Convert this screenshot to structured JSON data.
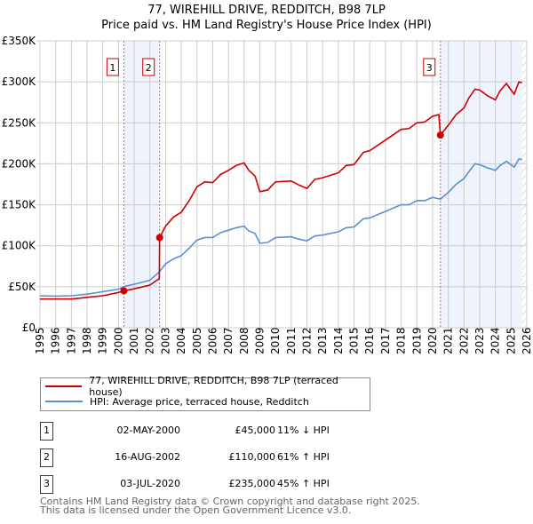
{
  "title": "77, WIREHILL DRIVE, REDDITCH, B98 7LP",
  "subtitle": "Price paid vs. HM Land Registry's House Price Index (HPI)",
  "chart_data": {
    "type": "line",
    "title": "77, WIREHILL DRIVE, REDDITCH, B98 7LP",
    "subtitle": "Price paid vs. HM Land Registry's House Price Index (HPI)",
    "xlim": [
      1995,
      2026
    ],
    "ylim": [
      0,
      350000
    ],
    "y_ticks": [
      0,
      50000,
      100000,
      150000,
      200000,
      250000,
      300000,
      350000
    ],
    "y_tick_labels": [
      "£0",
      "£50K",
      "£100K",
      "£150K",
      "£200K",
      "£250K",
      "£300K",
      "£350K"
    ],
    "x_ticks": [
      "1995",
      "1996",
      "1997",
      "1998",
      "1999",
      "2000",
      "2001",
      "2002",
      "2003",
      "2004",
      "2005",
      "2006",
      "2007",
      "2008",
      "2009",
      "2010",
      "2011",
      "2012",
      "2013",
      "2014",
      "2015",
      "2016",
      "2017",
      "2018",
      "2019",
      "2020",
      "2021",
      "2022",
      "2023",
      "2024",
      "2025",
      "2026"
    ],
    "grid": true,
    "series": [
      {
        "name": "77, WIREHILL DRIVE, REDDITCH, B98 7LP (terraced house)",
        "color": "#cc0000",
        "x": [
          1995,
          1996,
          1997,
          1998,
          1999,
          2000,
          2000.34,
          2001,
          2002,
          2002.6,
          2002.62,
          2003,
          2003.5,
          2004,
          2004.5,
          2005,
          2005.5,
          2006,
          2006.5,
          2007,
          2007.5,
          2008,
          2008.3,
          2008.7,
          2009,
          2009.5,
          2010,
          2011,
          2011.5,
          2012,
          2012.5,
          2013,
          2014,
          2014.5,
          2015,
          2015.6,
          2016,
          2017,
          2018,
          2018.5,
          2019,
          2019.5,
          2020,
          2020.4,
          2020.5,
          2021,
          2021.5,
          2022,
          2022.3,
          2022.7,
          2023,
          2023.5,
          2024,
          2024.3,
          2024.7,
          2025,
          2025.2,
          2025.5,
          2025.7
        ],
        "y": [
          35000,
          35000,
          35000,
          37000,
          39000,
          43000,
          45000,
          47500,
          52000,
          60000,
          110000,
          124000,
          135000,
          141000,
          155000,
          172000,
          178000,
          177000,
          187000,
          192000,
          198000,
          201000,
          192000,
          185000,
          166000,
          168000,
          178000,
          179000,
          174000,
          170000,
          181000,
          183000,
          189000,
          198000,
          199000,
          214000,
          216000,
          229000,
          242000,
          243000,
          250000,
          251000,
          258000,
          260000,
          235000,
          247000,
          260000,
          268000,
          280000,
          291000,
          290000,
          283000,
          278000,
          289000,
          298000,
          290000,
          285000,
          300000,
          299000
        ]
      },
      {
        "name": "HPI: Average price, terraced house, Redditch",
        "color": "#5b8fd4",
        "x": [
          1995,
          1996,
          1997,
          1998,
          1999,
          2000,
          2000.4,
          2001,
          2002,
          2002.6,
          2003,
          2003.5,
          2004,
          2004.5,
          2005,
          2005.5,
          2006,
          2006.5,
          2007,
          2007.5,
          2008,
          2008.3,
          2008.7,
          2009,
          2009.5,
          2010,
          2011,
          2011.5,
          2012,
          2012.5,
          2013,
          2014,
          2014.5,
          2015,
          2015.6,
          2016,
          2017,
          2018,
          2018.5,
          2019,
          2019.5,
          2020,
          2020.5,
          2021,
          2021.5,
          2022,
          2022.3,
          2022.7,
          2023,
          2023.5,
          2024,
          2024.3,
          2024.7,
          2025,
          2025.2,
          2025.5,
          2025.7
        ],
        "y": [
          39000,
          38500,
          39000,
          41000,
          44000,
          47000,
          50500,
          53000,
          58000,
          68000,
          78000,
          84000,
          88000,
          97000,
          107000,
          110000,
          110000,
          116000,
          119000,
          122000,
          124000,
          118000,
          115000,
          103000,
          104000,
          110000,
          111000,
          108000,
          106000,
          112000,
          113000,
          117000,
          122000,
          123000,
          133000,
          134000,
          142000,
          150000,
          150000,
          155000,
          155000,
          159000,
          157000,
          165000,
          175000,
          182000,
          190000,
          200000,
          199000,
          195000,
          192000,
          198000,
          203000,
          199000,
          196000,
          206000,
          205000
        ]
      }
    ],
    "sales": [
      {
        "label": "1",
        "x": 2000.34,
        "y": 45000,
        "date": "02-MAY-2000",
        "price": "£45,000",
        "hpi": "11% ↓ HPI"
      },
      {
        "label": "2",
        "x": 2002.62,
        "y": 110000,
        "date": "16-AUG-2002",
        "price": "£110,000",
        "hpi": "61% ↑ HPI"
      },
      {
        "label": "3",
        "x": 2020.5,
        "y": 235000,
        "date": "03-JUL-2020",
        "price": "£235,000",
        "hpi": "45% ↑ HPI"
      }
    ],
    "shaded": [
      [
        2000.34,
        2002.62
      ],
      [
        2020.5,
        2025.7
      ]
    ],
    "data_end": 2025.7,
    "legend_position": "bottom"
  },
  "legend": {
    "price": "77, WIREHILL DRIVE, REDDITCH, B98 7LP (terraced house)",
    "hpi": "HPI: Average price, terraced house, Redditch"
  },
  "footer": {
    "line1": "Contains HM Land Registry data © Crown copyright and database right 2025.",
    "line2": "This data is licensed under the Open Government Licence v3.0."
  }
}
